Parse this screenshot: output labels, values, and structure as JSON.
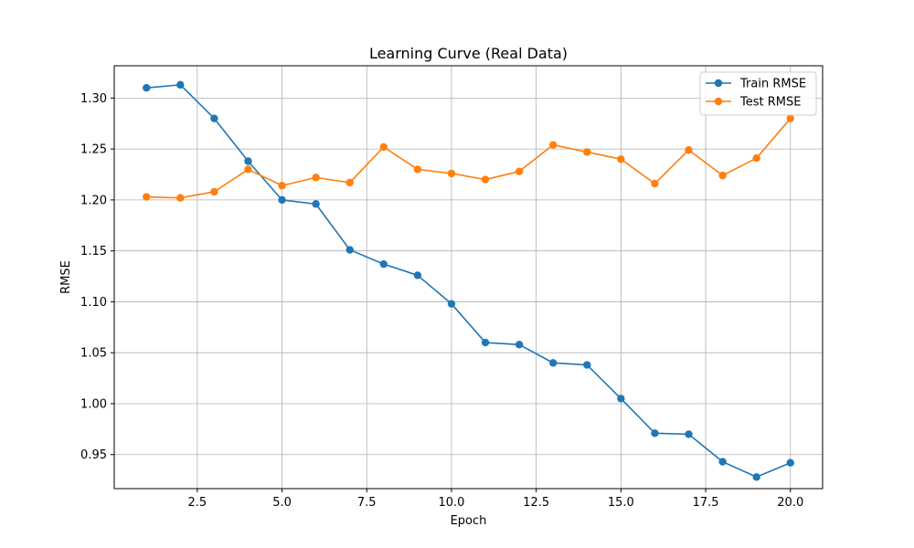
{
  "chart_data": {
    "type": "line",
    "title": "Learning Curve (Real Data)",
    "xlabel": "Epoch",
    "ylabel": "RMSE",
    "xlim": [
      0.05,
      20.95
    ],
    "ylim": [
      0.9166,
      1.3317
    ],
    "xticks": [
      2.5,
      5.0,
      7.5,
      10.0,
      12.5,
      15.0,
      17.5,
      20.0
    ],
    "xtick_labels": [
      "2.5",
      "5.0",
      "7.5",
      "10.0",
      "12.5",
      "15.0",
      "17.5",
      "20.0"
    ],
    "yticks": [
      0.95,
      1.0,
      1.05,
      1.1,
      1.15,
      1.2,
      1.25,
      1.3
    ],
    "ytick_labels": [
      "0.95",
      "1.00",
      "1.05",
      "1.10",
      "1.15",
      "1.20",
      "1.25",
      "1.30"
    ],
    "grid": true,
    "legend_position": "top-right",
    "x": [
      1,
      2,
      3,
      4,
      5,
      6,
      7,
      8,
      9,
      10,
      11,
      12,
      13,
      14,
      15,
      16,
      17,
      18,
      19,
      20
    ],
    "series": [
      {
        "name": "Train RMSE",
        "color": "#1f77b4",
        "values": [
          1.31,
          1.313,
          1.28,
          1.238,
          1.2,
          1.196,
          1.151,
          1.137,
          1.126,
          1.098,
          1.06,
          1.058,
          1.04,
          1.038,
          1.005,
          0.971,
          0.97,
          0.943,
          0.928,
          0.942
        ]
      },
      {
        "name": "Test RMSE",
        "color": "#ff7f0e",
        "values": [
          1.203,
          1.202,
          1.208,
          1.23,
          1.214,
          1.222,
          1.217,
          1.252,
          1.23,
          1.226,
          1.22,
          1.228,
          1.254,
          1.247,
          1.24,
          1.216,
          1.249,
          1.224,
          1.241,
          1.28
        ]
      }
    ]
  }
}
